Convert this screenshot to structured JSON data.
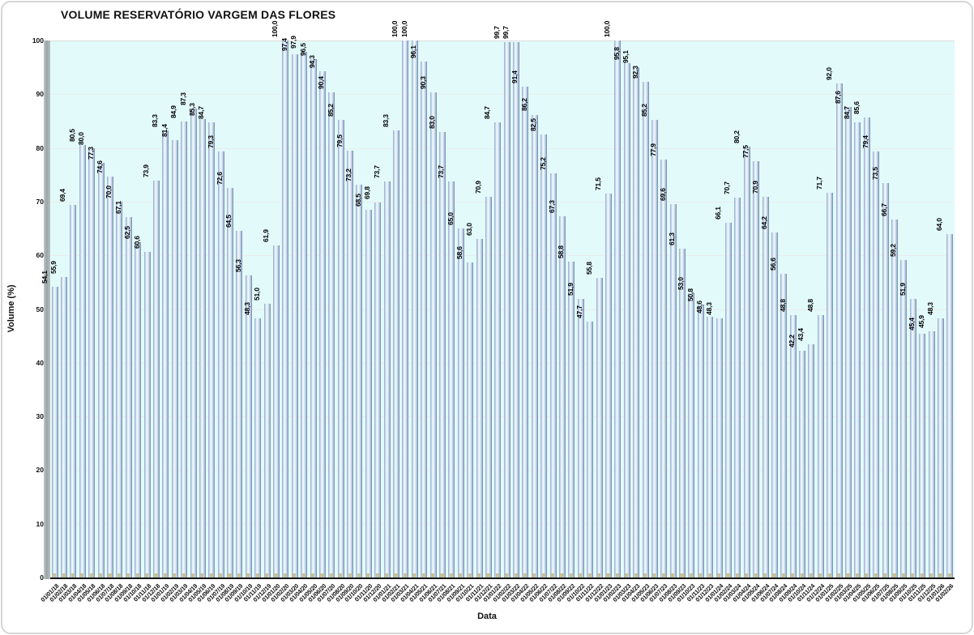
{
  "chart_data": {
    "type": "bar",
    "title": "VOLUME RESERVATÓRIO VARGEM DAS FLORES",
    "xlabel": "Data",
    "ylabel": "Volume (%)",
    "ylim": [
      0,
      100
    ],
    "yticks": [
      0,
      10,
      20,
      30,
      40,
      50,
      60,
      70,
      80,
      90,
      100
    ],
    "grid": true,
    "legend": "none",
    "decimal_separator": ",",
    "categories": [
      "01/01/18",
      "01/02/18",
      "01/03/18",
      "01/04/18",
      "01/05/18",
      "01/06/18",
      "01/07/18",
      "01/08/18",
      "01/09/18",
      "01/10/18",
      "01/11/18",
      "01/12/18",
      "01/01/19",
      "01/02/19",
      "01/03/19",
      "01/04/19",
      "01/05/19",
      "01/06/19",
      "01/07/19",
      "01/08/19",
      "01/09/19",
      "01/10/19",
      "01/11/19",
      "01/12/19",
      "01/01/20",
      "01/02/20",
      "01/03/20",
      "01/04/20",
      "01/05/20",
      "01/06/20",
      "01/07/20",
      "01/08/20",
      "01/09/20",
      "01/10/20",
      "01/11/20",
      "01/12/20",
      "01/01/21",
      "01/02/21",
      "01/03/21",
      "01/04/21",
      "01/05/21",
      "01/06/21",
      "01/07/21",
      "01/08/21",
      "01/09/21",
      "01/10/21",
      "01/11/21",
      "01/12/21",
      "01/01/22",
      "01/02/22",
      "01/03/22",
      "01/04/22",
      "01/05/22",
      "01/06/22",
      "01/07/22",
      "01/08/22",
      "01/09/22",
      "01/10/22",
      "01/11/22",
      "01/12/22",
      "01/01/23",
      "01/02/23",
      "01/03/23",
      "01/04/23",
      "01/05/23",
      "01/06/23",
      "01/07/23",
      "01/08/23",
      "01/09/23",
      "01/10/23",
      "01/11/23",
      "01/12/23",
      "01/01/24",
      "01/02/24",
      "01/03/24",
      "01/04/24",
      "01/05/24",
      "01/06/24",
      "01/07/24",
      "01/08/24",
      "01/09/24",
      "01/10/24",
      "01/11/24",
      "01/12/24",
      "01/01/25",
      "01/02/25",
      "01/03/25",
      "01/04/25",
      "01/05/25",
      "01/06/25",
      "01/07/25",
      "01/08/25",
      "01/09/25",
      "01/10/25",
      "01/11/25",
      "01/12/25",
      "01/01/26",
      "01/02/26"
    ],
    "values": [
      54.1,
      55.9,
      69.4,
      80.5,
      80.0,
      77.3,
      74.6,
      70.0,
      67.1,
      62.5,
      60.6,
      73.9,
      83.3,
      81.4,
      84.9,
      87.3,
      85.3,
      84.7,
      79.3,
      72.6,
      64.5,
      56.3,
      48.3,
      51.0,
      61.9,
      100.0,
      97.4,
      97.9,
      96.5,
      94.3,
      90.4,
      85.2,
      79.5,
      73.2,
      68.5,
      69.8,
      73.7,
      83.3,
      100.0,
      100.0,
      96.1,
      90.3,
      83.0,
      73.7,
      65.0,
      58.6,
      63.0,
      70.9,
      84.7,
      99.7,
      99.7,
      91.4,
      86.2,
      82.5,
      75.2,
      67.3,
      58.8,
      51.9,
      47.7,
      55.8,
      71.5,
      100.0,
      95.8,
      95.1,
      92.3,
      85.2,
      77.9,
      69.6,
      61.3,
      53.0,
      50.8,
      48.6,
      48.3,
      66.1,
      70.7,
      80.2,
      77.5,
      70.9,
      64.2,
      56.6,
      48.8,
      42.2,
      43.4,
      48.8,
      71.7,
      92.0,
      87.6,
      84.7,
      85.6,
      79.4,
      73.5,
      66.7,
      59.2,
      51.9,
      45.4,
      45.9,
      48.3,
      64.0
    ],
    "colors": {
      "plot_bg": "#e2fafa",
      "bar_highlight": "#f3f8fd",
      "bar_mid": "#c5d9ee",
      "bar_edge_dark": "#6e87a3",
      "bar_base_tan": "#c8c096",
      "wall_gray": "#9aa5a5",
      "gridline": "#ebebeb",
      "axis_line": "#141414",
      "text": "#111111"
    }
  }
}
